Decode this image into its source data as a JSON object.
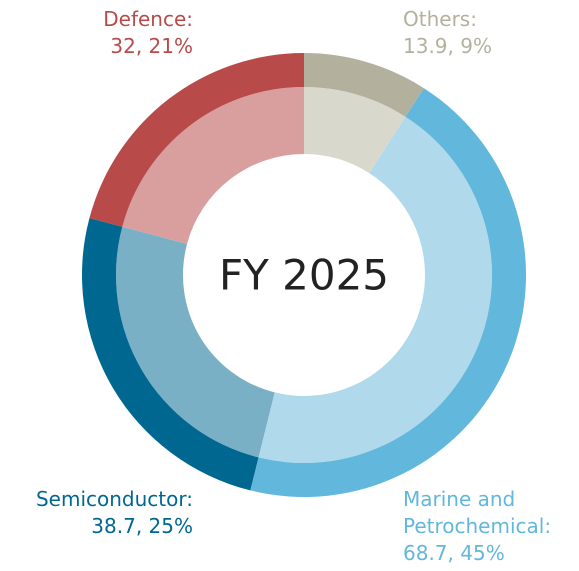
{
  "chart_data": {
    "type": "donut",
    "title": "FY 2025",
    "categories": [
      "Others:",
      "Marine and Petrochemical:",
      "Semiconductor:",
      "Defence:"
    ],
    "values": [
      13.9,
      68.7,
      38.7,
      32
    ],
    "value_labels": [
      "13.9, 9%",
      "68.7, 45%",
      "38.7, 25%",
      "32, 21%"
    ],
    "colors": [
      "#b3b19e",
      "#62b7dc",
      "#006890",
      "#b84a4a"
    ],
    "inner_colors": [
      "#d9d8cc",
      "#b0d9ec",
      "#7ab0c6",
      "#d99f9f"
    ]
  }
}
